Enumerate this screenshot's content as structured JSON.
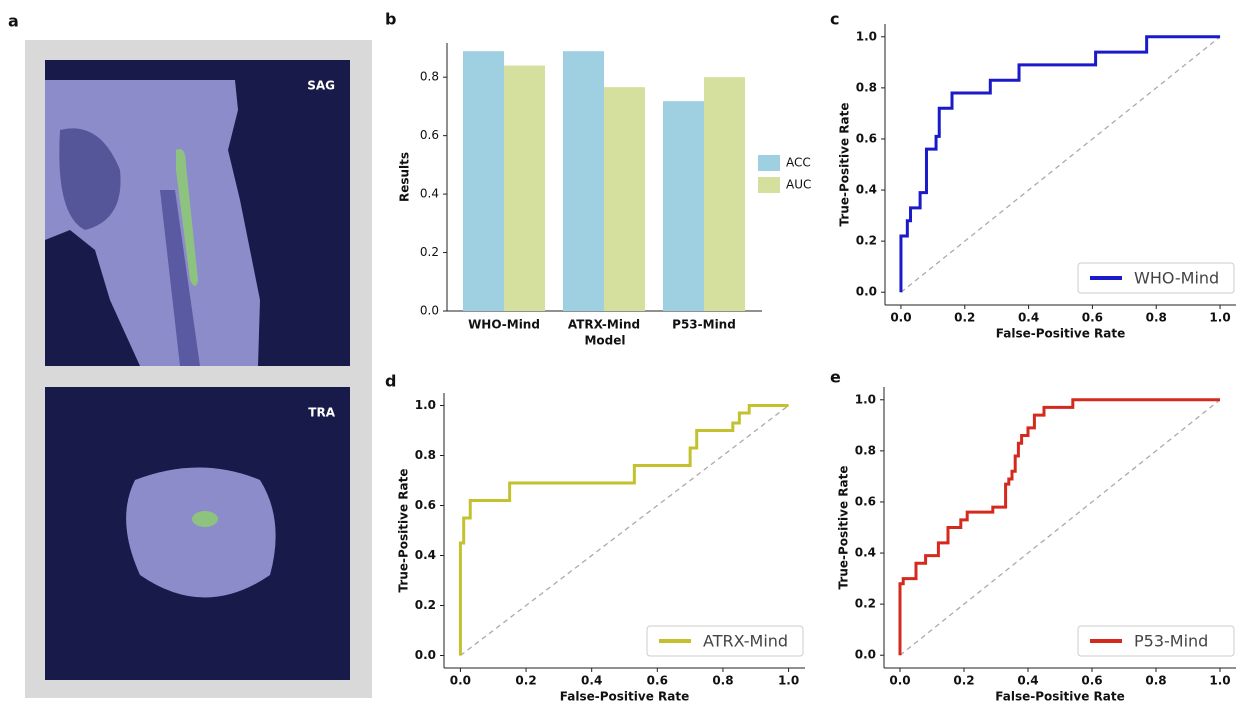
{
  "image_panel": {
    "panel_label": "a",
    "images": [
      "SAG",
      "TRA"
    ]
  },
  "chart_data": [
    {
      "type": "bar",
      "panel_label": "b",
      "x_label": "Model",
      "y_label": "Results",
      "categories": [
        "WHO-Mind",
        "ATRX-Mind",
        "P53-Mind"
      ],
      "series": [
        {
          "name": "ACC",
          "color": "#9fd0e1",
          "values": [
            0.889,
            0.889,
            0.718
          ]
        },
        {
          "name": "AUC",
          "color": "#d6e09e",
          "values": [
            0.84,
            0.766,
            0.8
          ]
        }
      ],
      "ylim": [
        0,
        0.917
      ],
      "yticks": [
        {
          "value": 0,
          "label": "0.0"
        },
        0.2,
        0.4,
        0.6,
        0.8
      ],
      "legend": "right"
    },
    {
      "type": "line",
      "panel_label": "c",
      "x_label": "False-Positive Rate",
      "y_label": "True-Positive Rate",
      "series": [
        {
          "name": "WHO-Mind",
          "color": "#1a1ac8",
          "x": [
            0,
            0,
            0.02,
            0.02,
            0.03,
            0.03,
            0.06,
            0.06,
            0.08,
            0.08,
            0.11,
            0.11,
            0.12,
            0.12,
            0.16,
            0.16,
            0.28,
            0.28,
            0.37,
            0.37,
            0.61,
            0.61,
            0.77,
            0.77,
            1.0
          ],
          "values": [
            0,
            0.22,
            0.22,
            0.28,
            0.28,
            0.33,
            0.33,
            0.39,
            0.39,
            0.56,
            0.56,
            0.61,
            0.61,
            0.72,
            0.72,
            0.78,
            0.78,
            0.83,
            0.83,
            0.89,
            0.89,
            0.94,
            0.94,
            1.0,
            1.0
          ]
        }
      ],
      "xlim": [
        -0.05,
        1.05
      ],
      "ylim": [
        -0.05,
        1.05
      ],
      "xticks": [
        {
          "value": 0,
          "label": "0.0"
        },
        0.2,
        0.4,
        0.6,
        0.8,
        {
          "value": 1,
          "label": "1.0"
        }
      ],
      "yticks": [
        {
          "value": 0,
          "label": "0.0"
        },
        0.2,
        0.4,
        0.6,
        0.8,
        {
          "value": 1,
          "label": "1.0"
        }
      ],
      "diagonal": true,
      "legend": "lower right"
    },
    {
      "type": "line",
      "panel_label": "d",
      "x_label": "False-Positive Rate",
      "y_label": "True-Positive Rate",
      "series": [
        {
          "name": "ATRX-Mind",
          "color": "#c3c22e",
          "x": [
            0,
            0,
            0.01,
            0.01,
            0.03,
            0.03,
            0.15,
            0.15,
            0.53,
            0.53,
            0.7,
            0.7,
            0.72,
            0.72,
            0.83,
            0.83,
            0.85,
            0.85,
            0.88,
            0.88,
            1.0
          ],
          "values": [
            0,
            0.45,
            0.45,
            0.55,
            0.55,
            0.62,
            0.62,
            0.69,
            0.69,
            0.76,
            0.76,
            0.83,
            0.83,
            0.9,
            0.9,
            0.93,
            0.93,
            0.97,
            0.97,
            1.0,
            1.0
          ]
        }
      ],
      "xlim": [
        -0.05,
        1.05
      ],
      "ylim": [
        -0.05,
        1.05
      ],
      "xticks": [
        {
          "value": 0,
          "label": "0.0"
        },
        0.2,
        0.4,
        0.6,
        0.8,
        {
          "value": 1,
          "label": "1.0"
        }
      ],
      "yticks": [
        {
          "value": 0,
          "label": "0.0"
        },
        0.2,
        0.4,
        0.6,
        0.8,
        {
          "value": 1,
          "label": "1.0"
        }
      ],
      "diagonal": true,
      "legend": "lower right"
    },
    {
      "type": "line",
      "panel_label": "e",
      "x_label": "False-Positive Rate",
      "y_label": "True-Positive Rate",
      "series": [
        {
          "name": "P53-Mind",
          "color": "#d42a1e",
          "x": [
            0,
            0,
            0.01,
            0.01,
            0.05,
            0.05,
            0.08,
            0.08,
            0.12,
            0.12,
            0.15,
            0.15,
            0.19,
            0.19,
            0.21,
            0.21,
            0.29,
            0.29,
            0.33,
            0.33,
            0.34,
            0.34,
            0.35,
            0.35,
            0.36,
            0.36,
            0.37,
            0.37,
            0.38,
            0.38,
            0.4,
            0.4,
            0.42,
            0.42,
            0.45,
            0.45,
            0.54,
            0.54,
            1.0
          ],
          "values": [
            0,
            0.28,
            0.28,
            0.3,
            0.3,
            0.36,
            0.36,
            0.39,
            0.39,
            0.44,
            0.44,
            0.5,
            0.5,
            0.53,
            0.53,
            0.56,
            0.56,
            0.58,
            0.58,
            0.67,
            0.67,
            0.69,
            0.69,
            0.72,
            0.72,
            0.78,
            0.78,
            0.83,
            0.83,
            0.86,
            0.86,
            0.89,
            0.89,
            0.94,
            0.94,
            0.97,
            0.97,
            1.0,
            1.0
          ]
        }
      ],
      "xlim": [
        -0.05,
        1.05
      ],
      "ylim": [
        -0.05,
        1.05
      ],
      "xticks": [
        {
          "value": 0,
          "label": "0.0"
        },
        0.2,
        0.4,
        0.6,
        0.8,
        {
          "value": 1,
          "label": "1.0"
        }
      ],
      "yticks": [
        {
          "value": 0,
          "label": "0.0"
        },
        0.2,
        0.4,
        0.6,
        0.8,
        {
          "value": 1,
          "label": "1.0"
        }
      ],
      "diagonal": true,
      "legend": "lower right"
    }
  ]
}
